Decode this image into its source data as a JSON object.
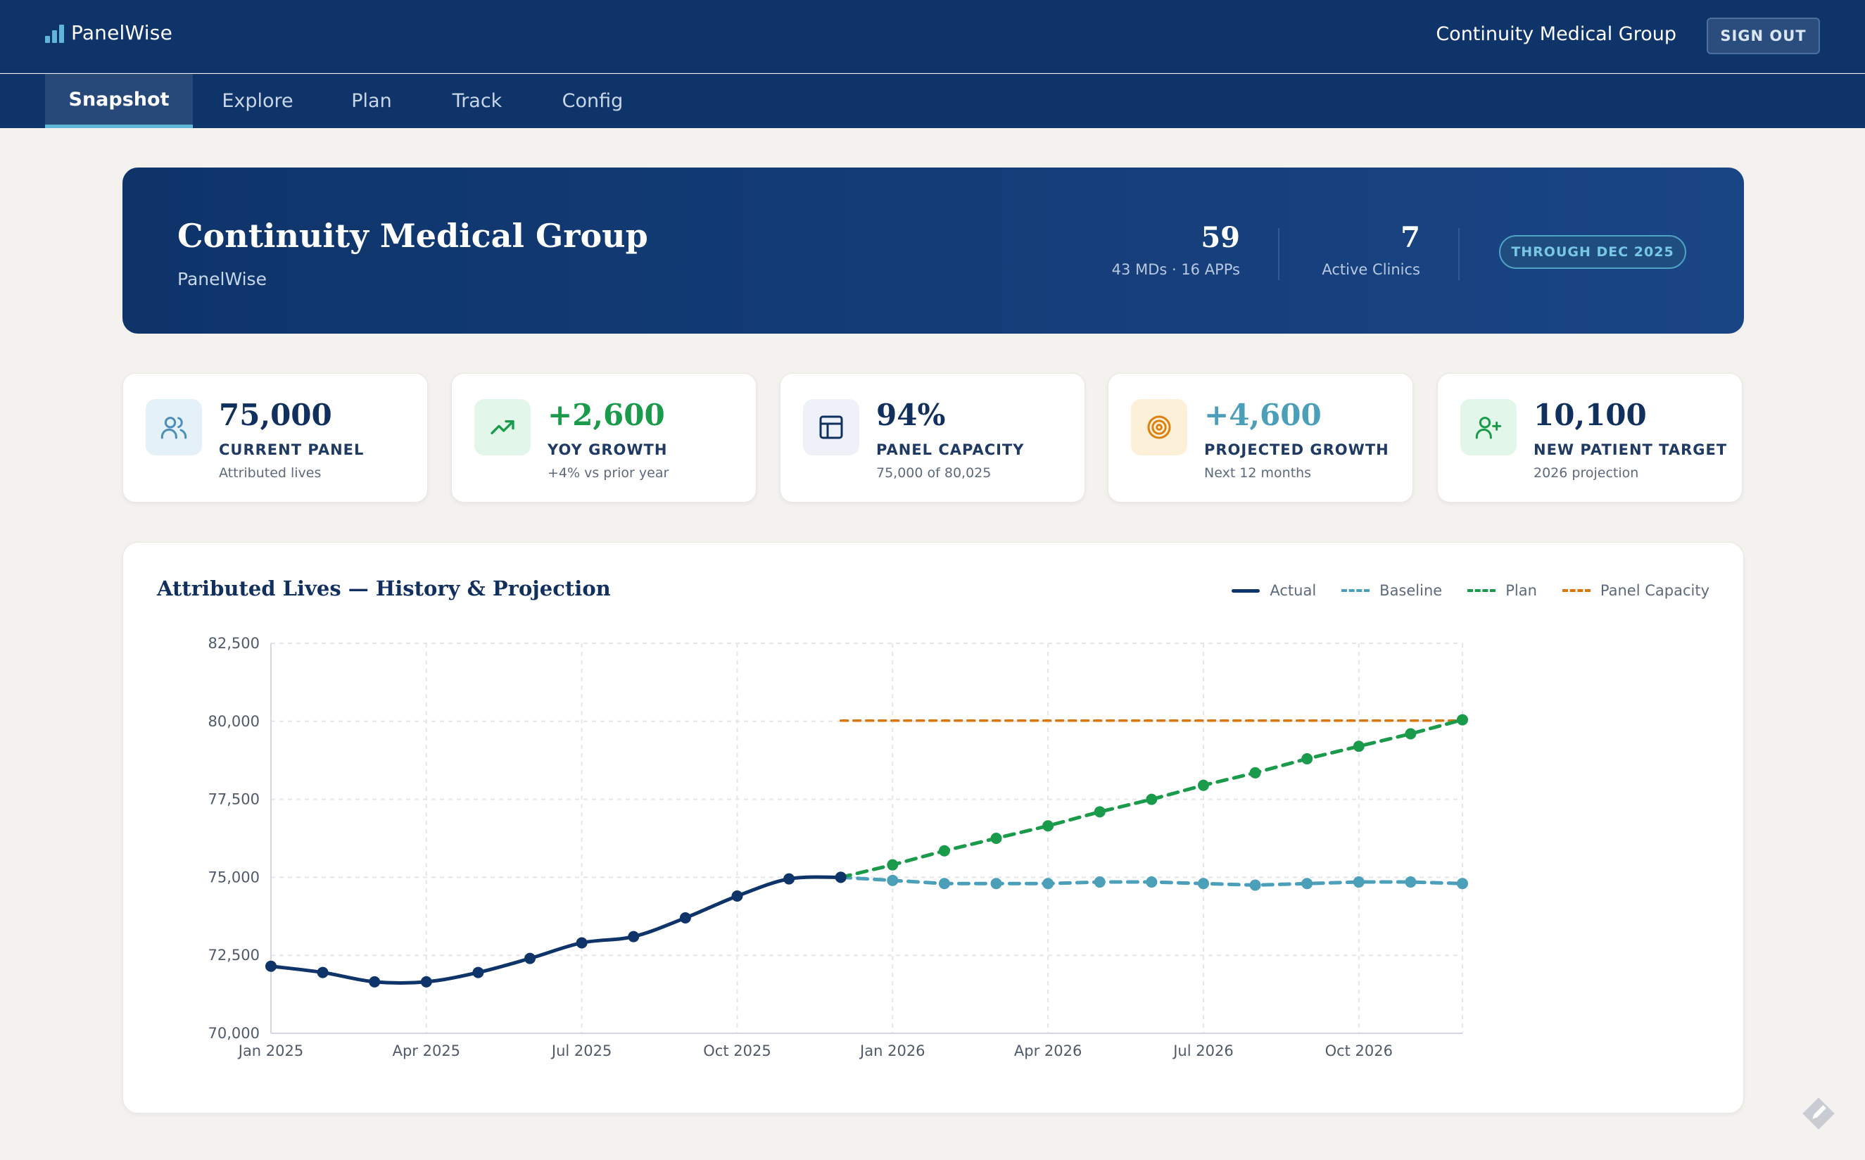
{
  "app": {
    "brand": "PanelWise",
    "org": "Continuity Medical Group",
    "sign_out": "SIGN OUT"
  },
  "nav": {
    "tabs": [
      "Snapshot",
      "Explore",
      "Plan",
      "Track",
      "Config"
    ],
    "active": "Snapshot"
  },
  "hero": {
    "title": "Continuity Medical Group",
    "subtitle": "PanelWise",
    "stats": [
      {
        "value": "59",
        "label": "43 MDs · 16 APPs"
      },
      {
        "value": "7",
        "label": "Active Clinics"
      }
    ],
    "badge": "THROUGH DEC 2025"
  },
  "kpis": [
    {
      "icon": "users-icon",
      "value": "75,000",
      "label": "CURRENT PANEL",
      "sub": "Attributed lives",
      "value_color": "#12305e",
      "icon_bg": "#e5f1f8",
      "icon_color": "#4b8fb8"
    },
    {
      "icon": "trending-up-icon",
      "value": "+2,600",
      "label": "YOY GROWTH",
      "sub": "+4% vs prior year",
      "value_color": "#1a9a4b",
      "icon_bg": "#e3f6ea",
      "icon_color": "#1a9a4b"
    },
    {
      "icon": "layout-icon",
      "value": "94%",
      "label": "PANEL CAPACITY",
      "sub": "75,000 of 80,025",
      "value_color": "#12305e",
      "icon_bg": "#eef2f8",
      "icon_color": "#12305e"
    },
    {
      "icon": "target-icon",
      "value": "+4,600",
      "label": "PROJECTED GROWTH",
      "sub": "Next 12 months",
      "value_color": "#4b9fb8",
      "icon_bg": "#fdf0d8",
      "icon_color": "#d9820f"
    },
    {
      "icon": "user-plus-icon",
      "value": "10,100",
      "label": "NEW PATIENT TARGET",
      "sub": "2026 projection",
      "value_color": "#12305e",
      "icon_bg": "#e3f6ea",
      "icon_color": "#1a9a4b"
    }
  ],
  "chart_data": {
    "type": "line",
    "title": "Attributed Lives — History & Projection",
    "xlabel": "",
    "ylabel": "",
    "ylim": [
      70000,
      82500
    ],
    "y_ticks": [
      "70,000",
      "72,500",
      "75,000",
      "77,500",
      "80,000",
      "82,500"
    ],
    "y_tick_values": [
      70000,
      72500,
      75000,
      77500,
      80000,
      82500
    ],
    "x_tick_labels": [
      "Jan 2025",
      "Apr 2025",
      "Jul 2025",
      "Oct 2025",
      "Jan 2026",
      "Apr 2026",
      "Jul 2026",
      "Oct 2026"
    ],
    "x": [
      "Jan 2025",
      "Feb 2025",
      "Mar 2025",
      "Apr 2025",
      "May 2025",
      "Jun 2025",
      "Jul 2025",
      "Aug 2025",
      "Sep 2025",
      "Oct 2025",
      "Nov 2025",
      "Dec 2025",
      "Jan 2026",
      "Feb 2026",
      "Mar 2026",
      "Apr 2026",
      "May 2026",
      "Jun 2026",
      "Jul 2026",
      "Aug 2026",
      "Sep 2026",
      "Oct 2026",
      "Nov 2026",
      "Dec 2026"
    ],
    "grid": true,
    "legend_position": "top-right",
    "series": [
      {
        "name": "Actual",
        "color": "#0e346a",
        "style": "solid",
        "values": [
          72150,
          71950,
          71650,
          71650,
          71950,
          72400,
          72900,
          73100,
          73700,
          74400,
          74950,
          75000,
          null,
          null,
          null,
          null,
          null,
          null,
          null,
          null,
          null,
          null,
          null,
          null
        ]
      },
      {
        "name": "Baseline",
        "color": "#4b9fb8",
        "style": "dashed",
        "values": [
          null,
          null,
          null,
          null,
          null,
          null,
          null,
          null,
          null,
          null,
          null,
          75000,
          74900,
          74800,
          74800,
          74800,
          74850,
          74850,
          74800,
          74750,
          74800,
          74850,
          74850,
          74800
        ]
      },
      {
        "name": "Plan",
        "color": "#1a9a4b",
        "style": "dashed",
        "values": [
          null,
          null,
          null,
          null,
          null,
          null,
          null,
          null,
          null,
          null,
          null,
          75000,
          75400,
          75850,
          76250,
          76650,
          77100,
          77500,
          77950,
          78350,
          78800,
          79200,
          79600,
          80050
        ]
      },
      {
        "name": "Panel Capacity",
        "color": "#d9780f",
        "style": "dashed",
        "values": [
          null,
          null,
          null,
          null,
          null,
          null,
          null,
          null,
          null,
          null,
          null,
          80025,
          80025,
          80025,
          80025,
          80025,
          80025,
          80025,
          80025,
          80025,
          80025,
          80025,
          80025,
          80025
        ]
      }
    ]
  }
}
